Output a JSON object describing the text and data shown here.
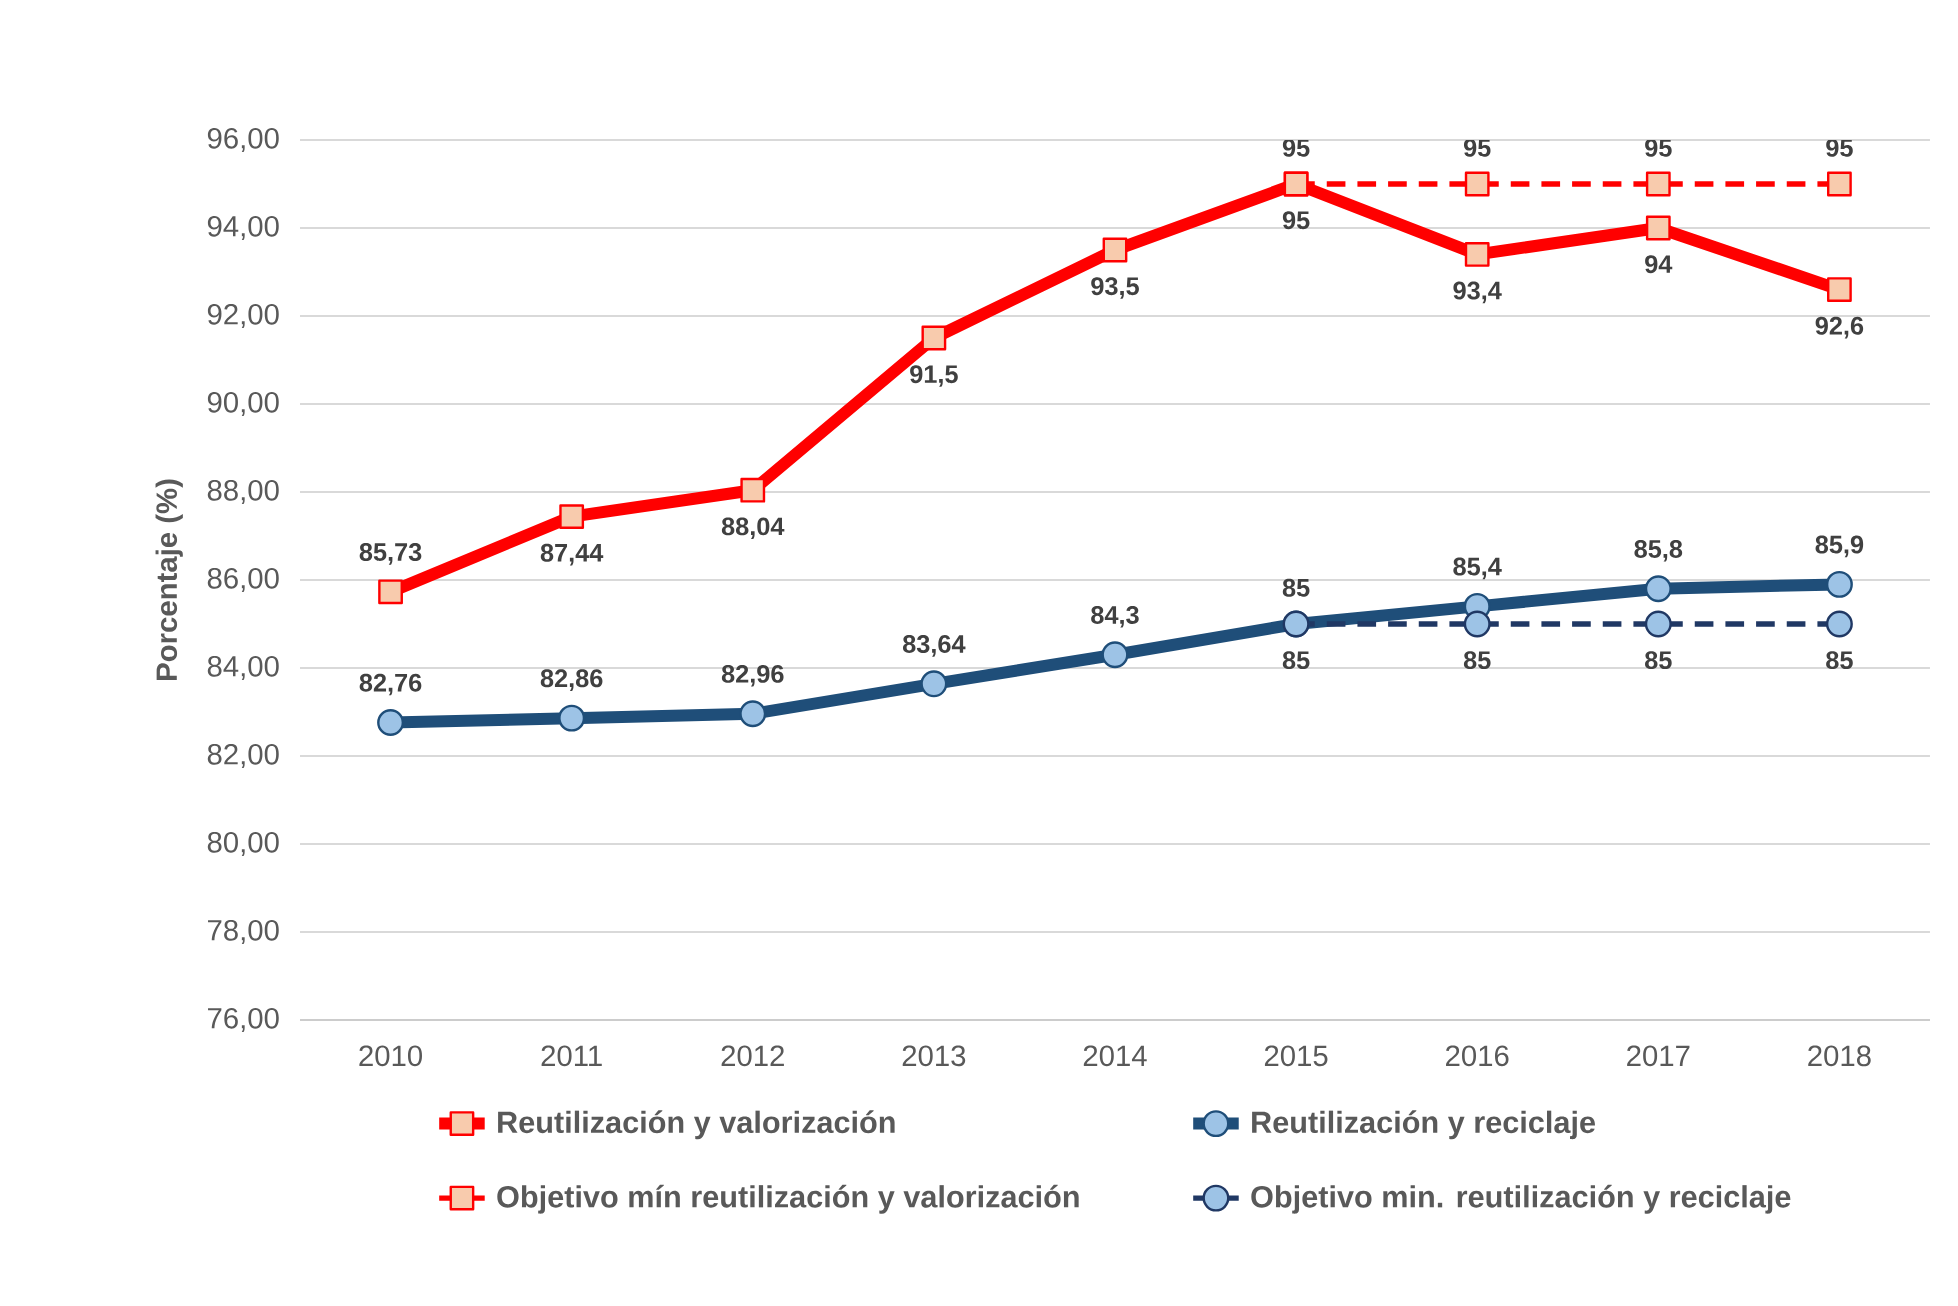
{
  "chart_data": {
    "type": "line",
    "ylabel": "Porcentaje (%)",
    "categories": [
      "2010",
      "2011",
      "2012",
      "2013",
      "2014",
      "2015",
      "2016",
      "2017",
      "2018"
    ],
    "series": [
      {
        "name": "Reutilización y valorización",
        "color": "#ff0000",
        "marker": "square",
        "line_style": "solid",
        "values": [
          85.73,
          87.44,
          88.04,
          91.5,
          93.5,
          95,
          93.4,
          94,
          92.6
        ],
        "value_labels": [
          "85,73",
          "87,44",
          "88,04",
          "91,5",
          "93,5",
          "95",
          "93,4",
          "94",
          "92,6"
        ]
      },
      {
        "name": "Reutilización y reciclaje",
        "color": "#1f4e79",
        "marker": "circle",
        "line_style": "solid",
        "values": [
          82.76,
          82.86,
          82.96,
          83.64,
          84.3,
          85,
          85.4,
          85.8,
          85.9
        ],
        "value_labels": [
          "82,76",
          "82,86",
          "82,96",
          "83,64",
          "84,3",
          "85",
          "85,4",
          "85,8",
          "85,9"
        ]
      },
      {
        "name": "Objetivo mín reutilización y valorización",
        "color": "#ff0000",
        "marker": "square",
        "line_style": "dashed",
        "values": [
          null,
          null,
          null,
          null,
          null,
          95,
          95,
          95,
          95
        ],
        "value_labels": [
          null,
          null,
          null,
          null,
          null,
          "95",
          "95",
          "95",
          "95"
        ]
      },
      {
        "name": "Objetivo min. reutilización y reciclaje",
        "color": "#203864",
        "marker": "circle",
        "line_style": "dashed",
        "values": [
          null,
          null,
          null,
          null,
          null,
          85,
          85,
          85,
          85
        ],
        "value_labels": [
          null,
          null,
          null,
          null,
          null,
          "85",
          "85",
          "85",
          "85"
        ]
      }
    ],
    "ylim": [
      76,
      96
    ],
    "yticks": [
      {
        "value": 76,
        "label": "76,00"
      },
      {
        "value": 78,
        "label": "78,00"
      },
      {
        "value": 80,
        "label": "80,00"
      },
      {
        "value": 82,
        "label": "82,00"
      },
      {
        "value": 84,
        "label": "84,00"
      },
      {
        "value": 86,
        "label": "86,00"
      },
      {
        "value": 88,
        "label": "88,00"
      },
      {
        "value": 90,
        "label": "90,00"
      },
      {
        "value": 92,
        "label": "92,00"
      },
      {
        "value": 94,
        "label": "94,00"
      },
      {
        "value": 96,
        "label": "96,00"
      }
    ],
    "grid": "y",
    "legend": "bottom"
  }
}
